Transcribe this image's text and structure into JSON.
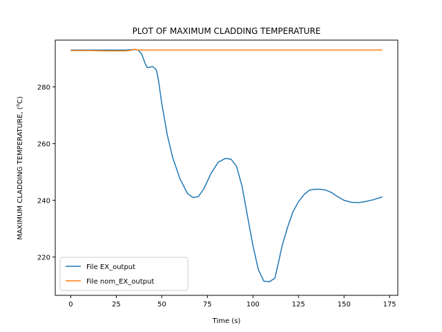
{
  "chart_data": {
    "type": "line",
    "title": "PLOT OF MAXIMUM CLADDING TEMPERATURE",
    "xlabel": "Time (s)",
    "ylabel": "MAXIMUM CLADDING TEMPERATURE, (",
    "ylabel_sup": "o",
    "ylabel_tail": "C)",
    "xlim": [
      -8.5,
      179.5
    ],
    "ylim": [
      206.5,
      296.5
    ],
    "xticks": [
      0,
      25,
      50,
      75,
      100,
      125,
      150,
      175
    ],
    "yticks": [
      220,
      240,
      260,
      280
    ],
    "legend_position": "lower-left",
    "grid": false,
    "series": [
      {
        "name": "File EX_output",
        "color": "#1f77b4",
        "x": [
          0,
          10,
          20,
          30,
          35,
          37,
          39,
          41,
          42,
          43,
          45,
          47,
          48,
          50,
          53,
          56,
          60,
          64,
          67,
          70,
          73,
          77,
          81,
          85,
          88,
          91,
          94,
          97,
          100,
          103,
          106,
          109,
          112,
          114,
          116,
          119,
          122,
          125,
          128,
          131,
          134,
          137,
          140,
          143,
          146,
          150,
          154,
          158,
          162,
          166,
          171
        ],
        "values": [
          293,
          293,
          293,
          293,
          293.2,
          293,
          291.5,
          288,
          286.8,
          286.9,
          287.2,
          286,
          283,
          274,
          263,
          255,
          247.5,
          242.5,
          241,
          241.3,
          244,
          249.5,
          253.5,
          254.8,
          254.5,
          252,
          245,
          234.5,
          224,
          215.5,
          211.5,
          211.3,
          212.5,
          218,
          224,
          230.5,
          236,
          239.5,
          242,
          243.6,
          243.9,
          243.9,
          243.6,
          242.8,
          241.5,
          240,
          239.3,
          239.2,
          239.6,
          240.2,
          241.2
        ]
      },
      {
        "name": "File nom_EX_output",
        "color": "#ff7f0e",
        "x": [
          0,
          10,
          20,
          30,
          33,
          35,
          37,
          40,
          60,
          100,
          140,
          171
        ],
        "values": [
          292.8,
          292.8,
          292.7,
          292.7,
          292.9,
          293.3,
          293,
          293,
          293,
          293,
          293,
          293
        ]
      }
    ]
  }
}
